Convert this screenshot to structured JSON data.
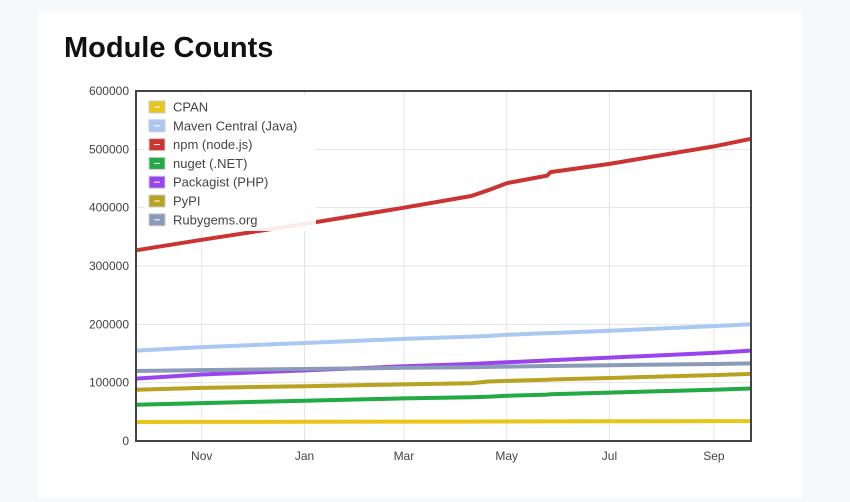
{
  "chart_data": {
    "type": "line",
    "title": "Module Counts",
    "xlabel": "",
    "ylabel": "",
    "xlim": [
      "2016-09-23",
      "2017-09-23"
    ],
    "ylim": [
      0,
      600000
    ],
    "x_ticks": [
      {
        "date": "2016-11-01",
        "label": "Nov"
      },
      {
        "date": "2017-01-01",
        "label": "Jan"
      },
      {
        "date": "2017-03-01",
        "label": "Mar"
      },
      {
        "date": "2017-05-01",
        "label": "May"
      },
      {
        "date": "2017-07-01",
        "label": "Jul"
      },
      {
        "date": "2017-09-01",
        "label": "Sep"
      }
    ],
    "y_ticks": [
      0,
      100000,
      200000,
      300000,
      400000,
      500000,
      600000
    ],
    "y_tick_labels": [
      "0",
      "100000",
      "200000",
      "300000",
      "400000",
      "500000",
      "600000"
    ],
    "grid": true,
    "legend_placement": "top-left",
    "x": [
      "2016-09-23",
      "2016-11-01",
      "2017-01-01",
      "2017-03-01",
      "2017-04-10",
      "2017-04-20",
      "2017-05-01",
      "2017-05-25",
      "2017-05-27",
      "2017-07-01",
      "2017-09-01",
      "2017-09-23"
    ],
    "series": [
      {
        "name": "CPAN",
        "color": "#e6c619",
        "values": [
          32500,
          32700,
          33000,
          33200,
          33300,
          33400,
          33500,
          33600,
          33600,
          33800,
          34100,
          34200
        ]
      },
      {
        "name": "Maven Central (Java)",
        "color": "#a9c9f2",
        "values": [
          155000,
          161000,
          168000,
          175000,
          179000,
          180000,
          182000,
          185000,
          185000,
          189000,
          197000,
          200000
        ]
      },
      {
        "name": "npm (node.js)",
        "color": "#cc3333",
        "values": [
          327000,
          345000,
          372000,
          400000,
          420000,
          430000,
          442000,
          455000,
          461000,
          475000,
          505000,
          518000
        ]
      },
      {
        "name": "nuget (.NET)",
        "color": "#22aa44",
        "values": [
          62000,
          65000,
          69000,
          73000,
          75000,
          76000,
          77500,
          79500,
          80000,
          83000,
          88000,
          90000
        ]
      },
      {
        "name": "Packagist (PHP)",
        "color": "#9a44ee",
        "values": [
          107000,
          114000,
          121000,
          128000,
          132000,
          133500,
          135000,
          138000,
          138500,
          143000,
          151000,
          155000
        ]
      },
      {
        "name": "PyPI",
        "color": "#b8a222",
        "values": [
          88000,
          91000,
          94000,
          97000,
          99000,
          102000,
          103000,
          105000,
          105500,
          108000,
          113000,
          115000
        ]
      },
      {
        "name": "Rubygems.org",
        "color": "#8a9ab8",
        "values": [
          120000,
          121500,
          123500,
          125500,
          126500,
          127000,
          127500,
          128500,
          128500,
          130000,
          132000,
          133000
        ]
      }
    ]
  }
}
